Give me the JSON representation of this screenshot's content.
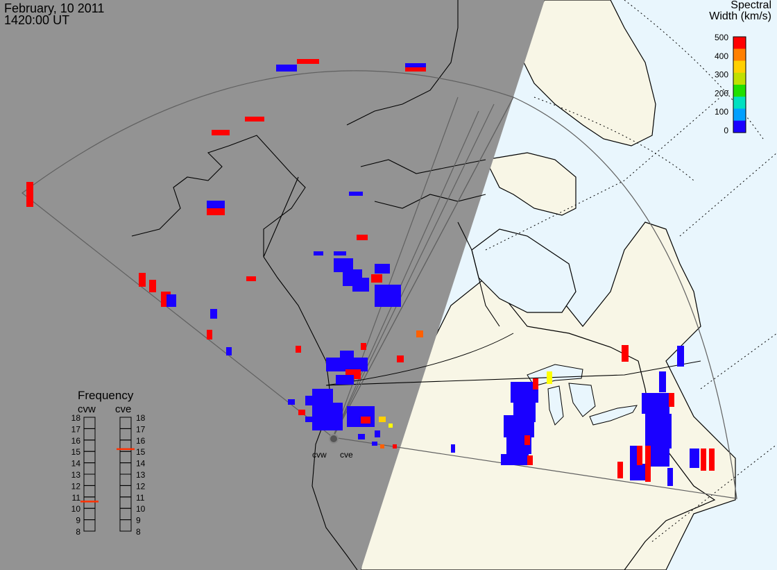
{
  "title": {
    "date": "February, 10 2011",
    "time": "1420:00 UT"
  },
  "colorbar": {
    "title_line1": "Spectral",
    "title_line2": "Width (km/s)",
    "ticks": [
      "500",
      "400",
      "300",
      "200",
      "100",
      "0"
    ],
    "colors": [
      "#1a00ff",
      "#00a0ff",
      "#00e0c0",
      "#20e000",
      "#c0e000",
      "#ffd000",
      "#ff8000",
      "#ff0000"
    ]
  },
  "radars": {
    "west": "cvw",
    "east": "cve"
  },
  "frequency": {
    "title": "Frequency",
    "west_label": "cvw",
    "east_label": "cve",
    "ticks": [
      "18",
      "17",
      "16",
      "15",
      "14",
      "13",
      "12",
      "11",
      "10",
      "9",
      "8"
    ],
    "cvw_mhz": 10.6,
    "cve_mhz": 15.2,
    "marker_color": "#ff3000"
  },
  "colors": {
    "night": "#939393",
    "land": "#f8f6e6",
    "ocean": "#e9f6fd",
    "low_width": "#1a00ff",
    "high_width": "#ff0000"
  }
}
